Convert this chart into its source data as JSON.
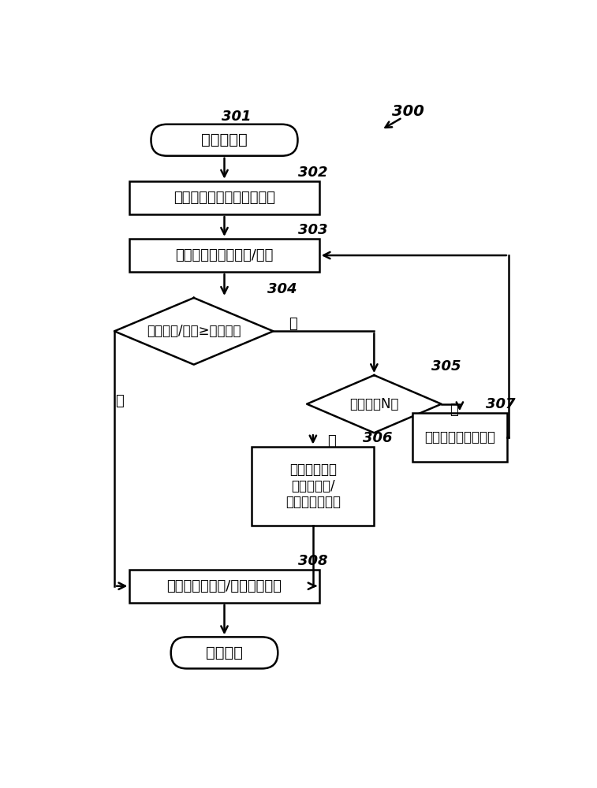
{
  "bg_color": "#ffffff",
  "label_300": "300",
  "label_301": "301",
  "label_302": "302",
  "label_303": "303",
  "label_304": "304",
  "label_305": "305",
  "label_306": "306",
  "label_307": "307",
  "label_308": "308",
  "text_301": "给电机加电",
  "text_302": "驱动研磨器沿第一方向旋转",
  "text_303": "检测电机的负载电流/电压",
  "text_304": "负载电流/电压≥预定値？",
  "text_305": "次数达到N？",
  "text_306": "暂停电机并将\n食材熏煮和/\n或浸泡预定时间",
  "text_307": "改变研磨器旋转方向",
  "text_308": "继续沿第一方向/第二方向旋转",
  "text_end": "研磨完成",
  "yes_label": "是",
  "no_label": "否",
  "font_cn": "SimHei",
  "lw": 1.8
}
